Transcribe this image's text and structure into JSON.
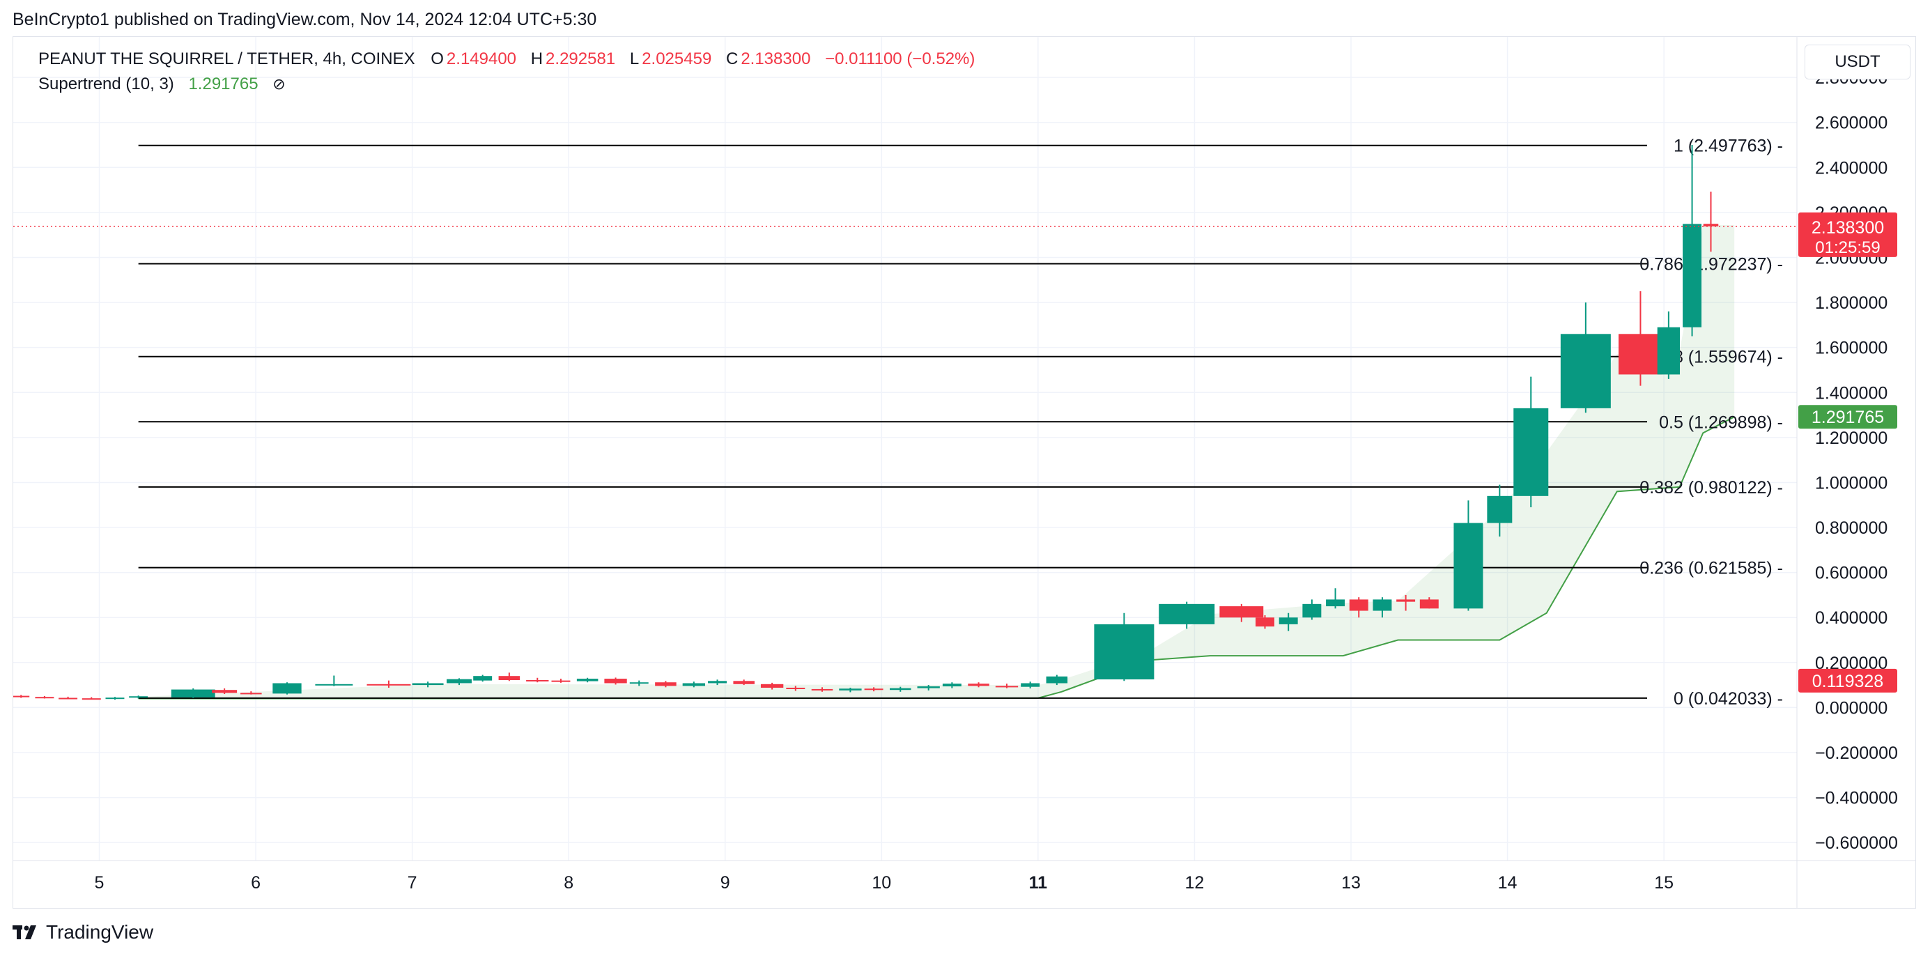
{
  "header": {
    "publisher": "BeInCrypto1 published on TradingView.com, Nov 14, 2024 12:04 UTC+5:30"
  },
  "legend": {
    "symbol": "PEANUT THE SQUIRREL / TETHER, 4h, COINEX",
    "open_label": "O",
    "open": "2.149400",
    "high_label": "H",
    "high": "2.292581",
    "low_label": "L",
    "low": "2.025459",
    "close_label": "C",
    "close": "2.138300",
    "change": "−0.011100 (−0.52%)",
    "indicator": "Supertrend (10, 3)",
    "indicator_value": "1.291765",
    "indicator_icon": "hidden-eye-icon"
  },
  "currency": "USDT",
  "brand": {
    "name": "TradingView",
    "icon": "tradingview-logo-icon"
  },
  "colors": {
    "up": "#089981",
    "down": "#f23645",
    "supertrend": "#43a047",
    "supertrend_fill": "rgba(67,160,71,0.10)",
    "fib_line": "#000000",
    "grid": "#f0f3fa",
    "price_tag": "#f23645",
    "supertrend_tag": "#43a047",
    "low_tag": "#f23645"
  },
  "chart_data": {
    "type": "candlestick",
    "timeframe": "4h",
    "y_axis": {
      "ylim": [
        -0.68,
        2.98
      ],
      "ticks": [
        "2.800000",
        "2.600000",
        "2.400000",
        "2.200000",
        "2.000000",
        "1.800000",
        "1.600000",
        "1.400000",
        "1.200000",
        "1.000000",
        "0.800000",
        "0.600000",
        "0.400000",
        "0.200000",
        "0.000000",
        "−0.200000",
        "−0.400000",
        "−0.600000"
      ],
      "tick_values": [
        2.8,
        2.6,
        2.4,
        2.2,
        2.0,
        1.8,
        1.6,
        1.4,
        1.2,
        1.0,
        0.8,
        0.6,
        0.4,
        0.2,
        0.0,
        -0.2,
        -0.4,
        -0.6
      ]
    },
    "x_axis": {
      "xlim": [
        4.45,
        15.85
      ],
      "ticks": [
        {
          "label": "5",
          "day": 5,
          "bold": false
        },
        {
          "label": "6",
          "day": 6,
          "bold": false
        },
        {
          "label": "7",
          "day": 7,
          "bold": false
        },
        {
          "label": "8",
          "day": 8,
          "bold": false
        },
        {
          "label": "9",
          "day": 9,
          "bold": false
        },
        {
          "label": "10",
          "day": 10,
          "bold": false
        },
        {
          "label": "11",
          "day": 11,
          "bold": true
        },
        {
          "label": "12",
          "day": 12,
          "bold": false
        },
        {
          "label": "13",
          "day": 13,
          "bold": false
        },
        {
          "label": "14",
          "day": 14,
          "bold": false
        },
        {
          "label": "15",
          "day": 15,
          "bold": false
        }
      ]
    },
    "candles": [
      {
        "t": 4.5,
        "o": 0.052,
        "h": 0.056,
        "l": 0.043,
        "c": 0.047
      },
      {
        "t": 4.65,
        "o": 0.047,
        "h": 0.051,
        "l": 0.04,
        "c": 0.043
      },
      {
        "t": 4.8,
        "o": 0.043,
        "h": 0.048,
        "l": 0.038,
        "c": 0.041
      },
      {
        "t": 4.95,
        "o": 0.041,
        "h": 0.046,
        "l": 0.036,
        "c": 0.039
      },
      {
        "t": 5.1,
        "o": 0.039,
        "h": 0.047,
        "l": 0.035,
        "c": 0.044
      },
      {
        "t": 5.25,
        "o": 0.044,
        "h": 0.053,
        "l": 0.04,
        "c": 0.05
      },
      {
        "t": 5.6,
        "o": 0.045,
        "h": 0.085,
        "l": 0.042,
        "c": 0.08
      },
      {
        "t": 5.8,
        "o": 0.078,
        "h": 0.085,
        "l": 0.06,
        "c": 0.065
      },
      {
        "t": 5.97,
        "o": 0.065,
        "h": 0.072,
        "l": 0.058,
        "c": 0.062
      },
      {
        "t": 6.2,
        "o": 0.062,
        "h": 0.112,
        "l": 0.058,
        "c": 0.108
      },
      {
        "t": 6.5,
        "o": 0.1,
        "h": 0.142,
        "l": 0.095,
        "c": 0.104
      },
      {
        "t": 6.85,
        "o": 0.104,
        "h": 0.12,
        "l": 0.088,
        "c": 0.098
      },
      {
        "t": 7.1,
        "o": 0.1,
        "h": 0.115,
        "l": 0.09,
        "c": 0.108
      },
      {
        "t": 7.3,
        "o": 0.108,
        "h": 0.13,
        "l": 0.1,
        "c": 0.126
      },
      {
        "t": 7.45,
        "o": 0.12,
        "h": 0.145,
        "l": 0.115,
        "c": 0.14
      },
      {
        "t": 7.62,
        "o": 0.14,
        "h": 0.155,
        "l": 0.118,
        "c": 0.122
      },
      {
        "t": 7.8,
        "o": 0.122,
        "h": 0.132,
        "l": 0.112,
        "c": 0.12
      },
      {
        "t": 7.95,
        "o": 0.12,
        "h": 0.128,
        "l": 0.11,
        "c": 0.117
      },
      {
        "t": 8.12,
        "o": 0.117,
        "h": 0.132,
        "l": 0.112,
        "c": 0.128
      },
      {
        "t": 8.3,
        "o": 0.128,
        "h": 0.133,
        "l": 0.102,
        "c": 0.108
      },
      {
        "t": 8.45,
        "o": 0.11,
        "h": 0.12,
        "l": 0.096,
        "c": 0.112
      },
      {
        "t": 8.62,
        "o": 0.112,
        "h": 0.118,
        "l": 0.09,
        "c": 0.096
      },
      {
        "t": 8.8,
        "o": 0.096,
        "h": 0.115,
        "l": 0.09,
        "c": 0.108
      },
      {
        "t": 8.95,
        "o": 0.108,
        "h": 0.124,
        "l": 0.1,
        "c": 0.118
      },
      {
        "t": 9.12,
        "o": 0.118,
        "h": 0.124,
        "l": 0.1,
        "c": 0.104
      },
      {
        "t": 9.3,
        "o": 0.104,
        "h": 0.11,
        "l": 0.08,
        "c": 0.088
      },
      {
        "t": 9.45,
        "o": 0.088,
        "h": 0.096,
        "l": 0.074,
        "c": 0.082
      },
      {
        "t": 9.62,
        "o": 0.082,
        "h": 0.09,
        "l": 0.07,
        "c": 0.076
      },
      {
        "t": 9.8,
        "o": 0.076,
        "h": 0.088,
        "l": 0.068,
        "c": 0.084
      },
      {
        "t": 9.95,
        "o": 0.084,
        "h": 0.09,
        "l": 0.072,
        "c": 0.078
      },
      {
        "t": 10.12,
        "o": 0.078,
        "h": 0.092,
        "l": 0.07,
        "c": 0.086
      },
      {
        "t": 10.3,
        "o": 0.086,
        "h": 0.1,
        "l": 0.076,
        "c": 0.094
      },
      {
        "t": 10.45,
        "o": 0.094,
        "h": 0.112,
        "l": 0.086,
        "c": 0.106
      },
      {
        "t": 10.62,
        "o": 0.106,
        "h": 0.112,
        "l": 0.09,
        "c": 0.096
      },
      {
        "t": 10.8,
        "o": 0.096,
        "h": 0.106,
        "l": 0.086,
        "c": 0.092
      },
      {
        "t": 10.95,
        "o": 0.092,
        "h": 0.115,
        "l": 0.085,
        "c": 0.108
      },
      {
        "t": 11.12,
        "o": 0.108,
        "h": 0.145,
        "l": 0.1,
        "c": 0.138
      },
      {
        "t": 11.55,
        "o": 0.125,
        "h": 0.42,
        "l": 0.118,
        "c": 0.37
      },
      {
        "t": 11.95,
        "o": 0.37,
        "h": 0.47,
        "l": 0.35,
        "c": 0.46
      },
      {
        "t": 12.3,
        "o": 0.45,
        "h": 0.46,
        "l": 0.38,
        "c": 0.4
      },
      {
        "t": 12.45,
        "o": 0.4,
        "h": 0.41,
        "l": 0.35,
        "c": 0.36
      },
      {
        "t": 12.6,
        "o": 0.37,
        "h": 0.42,
        "l": 0.34,
        "c": 0.4
      },
      {
        "t": 12.75,
        "o": 0.4,
        "h": 0.48,
        "l": 0.39,
        "c": 0.46
      },
      {
        "t": 12.9,
        "o": 0.45,
        "h": 0.53,
        "l": 0.44,
        "c": 0.48
      },
      {
        "t": 13.05,
        "o": 0.48,
        "h": 0.49,
        "l": 0.4,
        "c": 0.43
      },
      {
        "t": 13.2,
        "o": 0.43,
        "h": 0.49,
        "l": 0.4,
        "c": 0.48
      },
      {
        "t": 13.35,
        "o": 0.48,
        "h": 0.5,
        "l": 0.43,
        "c": 0.47
      },
      {
        "t": 13.5,
        "o": 0.48,
        "h": 0.49,
        "l": 0.44,
        "c": 0.44
      },
      {
        "t": 13.75,
        "o": 0.44,
        "h": 0.92,
        "l": 0.43,
        "c": 0.82
      },
      {
        "t": 13.95,
        "o": 0.82,
        "h": 0.99,
        "l": 0.76,
        "c": 0.94
      },
      {
        "t": 14.15,
        "o": 0.94,
        "h": 1.47,
        "l": 0.89,
        "c": 1.33
      },
      {
        "t": 14.5,
        "o": 1.33,
        "h": 1.8,
        "l": 1.31,
        "c": 1.66
      },
      {
        "t": 14.85,
        "o": 1.66,
        "h": 1.85,
        "l": 1.43,
        "c": 1.48
      },
      {
        "t": 15.03,
        "o": 1.48,
        "h": 1.76,
        "l": 1.46,
        "c": 1.69
      },
      {
        "t": 15.18,
        "o": 1.69,
        "h": 2.5,
        "l": 1.65,
        "c": 2.149
      },
      {
        "t": 15.3,
        "o": 2.1494,
        "h": 2.292581,
        "l": 2.025459,
        "c": 2.1383
      }
    ],
    "supertrend": [
      {
        "t": 5.25,
        "v": 0.04
      },
      {
        "t": 7.1,
        "v": 0.04
      },
      {
        "t": 11.0,
        "v": 0.042
      },
      {
        "t": 11.15,
        "v": 0.07
      },
      {
        "t": 11.7,
        "v": 0.21
      },
      {
        "t": 12.1,
        "v": 0.23
      },
      {
        "t": 12.95,
        "v": 0.23
      },
      {
        "t": 13.3,
        "v": 0.3
      },
      {
        "t": 13.95,
        "v": 0.3
      },
      {
        "t": 14.25,
        "v": 0.42
      },
      {
        "t": 14.7,
        "v": 0.96
      },
      {
        "t": 15.1,
        "v": 0.98
      },
      {
        "t": 15.25,
        "v": 1.22
      },
      {
        "t": 15.45,
        "v": 1.291765
      }
    ],
    "fibonacci": {
      "x_start": 5.25,
      "levels": [
        {
          "label": "1 (2.497763)",
          "value": 2.497763
        },
        {
          "label": "0.786 (1.972237)",
          "value": 1.972237
        },
        {
          "label": "0.618 (1.559674)",
          "value": 1.559674
        },
        {
          "label": "0.5 (1.269898)",
          "value": 1.269898
        },
        {
          "label": "0.382 (0.980122)",
          "value": 0.980122
        },
        {
          "label": "0.236 (0.621585)",
          "value": 0.621585
        },
        {
          "label": "0 (0.042033)",
          "value": 0.042033
        }
      ]
    },
    "price_tags": [
      {
        "kind": "last-price",
        "value": 2.1383,
        "text": "2.138300",
        "sub": "01:25:59"
      },
      {
        "kind": "supertrend",
        "value": 1.291765,
        "text": "1.291765"
      },
      {
        "kind": "low-marker",
        "value": 0.119328,
        "text": "0.119328"
      }
    ]
  }
}
